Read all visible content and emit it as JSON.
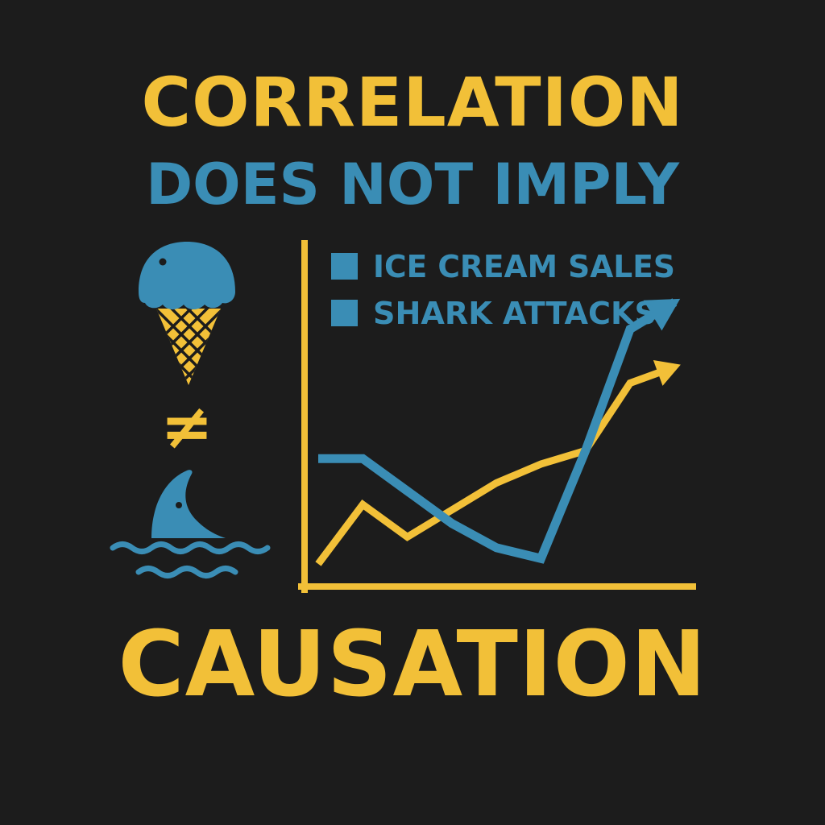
{
  "colors": {
    "background": "#1c1c1c",
    "yellow": "#f2c038",
    "blue": "#3a8db5"
  },
  "headline": {
    "line1": "CORRELATION",
    "line2": "DOES NOT IMPLY",
    "line3": "CAUSATION"
  },
  "icons": {
    "top": "ice-cream-cone-icon",
    "middle": "not-equal-icon",
    "bottom": "shark-fin-icon"
  },
  "not_equal_symbol": "≠",
  "chart_data": {
    "type": "line",
    "title": "",
    "xlabel": "",
    "ylabel": "",
    "legend": "top-left",
    "grid": false,
    "x": [
      1,
      2,
      3,
      4,
      5,
      6,
      7,
      8,
      9
    ],
    "xlim": [
      1,
      9.5
    ],
    "ylim": [
      0,
      10
    ],
    "series": [
      {
        "name": "ICE CREAM SALES",
        "color": "#3a8db5",
        "values": [
          4.2,
          4.2,
          3.0,
          1.8,
          0.9,
          0.5,
          4.5,
          9.0,
          10.0
        ]
      },
      {
        "name": "SHARK ATTACKS",
        "color": "#f2c038",
        "values": [
          0.3,
          2.5,
          1.3,
          2.3,
          3.3,
          4.0,
          4.5,
          7.0,
          7.6
        ]
      }
    ]
  }
}
